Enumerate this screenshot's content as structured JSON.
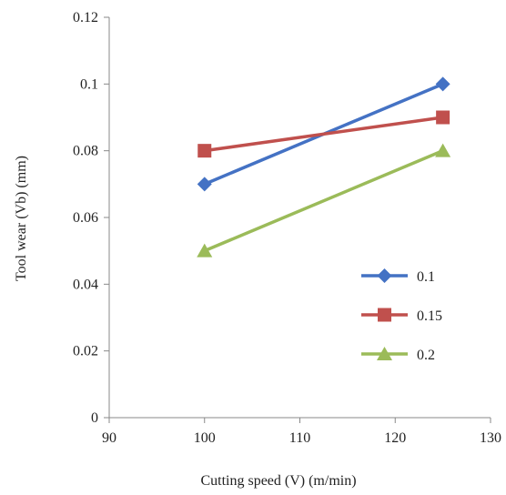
{
  "chart_data": {
    "type": "line",
    "title": "",
    "xlabel": "Cutting speed (V) (m/min)",
    "ylabel": "Tool wear (Vb) (mm)",
    "xlim": [
      90,
      130
    ],
    "ylim": [
      0,
      0.12
    ],
    "x_ticks": [
      90,
      100,
      110,
      120,
      130
    ],
    "y_ticks": [
      0,
      0.02,
      0.04,
      0.06,
      0.08,
      0.1,
      0.12
    ],
    "x_tick_labels": [
      "90",
      "100",
      "110",
      "120",
      "130"
    ],
    "y_tick_labels": [
      "0",
      "0.02",
      "0.04",
      "0.06",
      "0.08",
      "0.1",
      "0.12"
    ],
    "grid": false,
    "legend_position": "right",
    "series": [
      {
        "name": "0.1",
        "color": "#4472C4",
        "marker": "diamond",
        "x": [
          100,
          125
        ],
        "y": [
          0.07,
          0.1
        ]
      },
      {
        "name": "0.15",
        "color": "#C0504D",
        "marker": "square",
        "x": [
          100,
          125
        ],
        "y": [
          0.08,
          0.09
        ]
      },
      {
        "name": "0.2",
        "color": "#9BBB59",
        "marker": "triangle",
        "x": [
          100,
          125
        ],
        "y": [
          0.05,
          0.08
        ]
      }
    ]
  }
}
